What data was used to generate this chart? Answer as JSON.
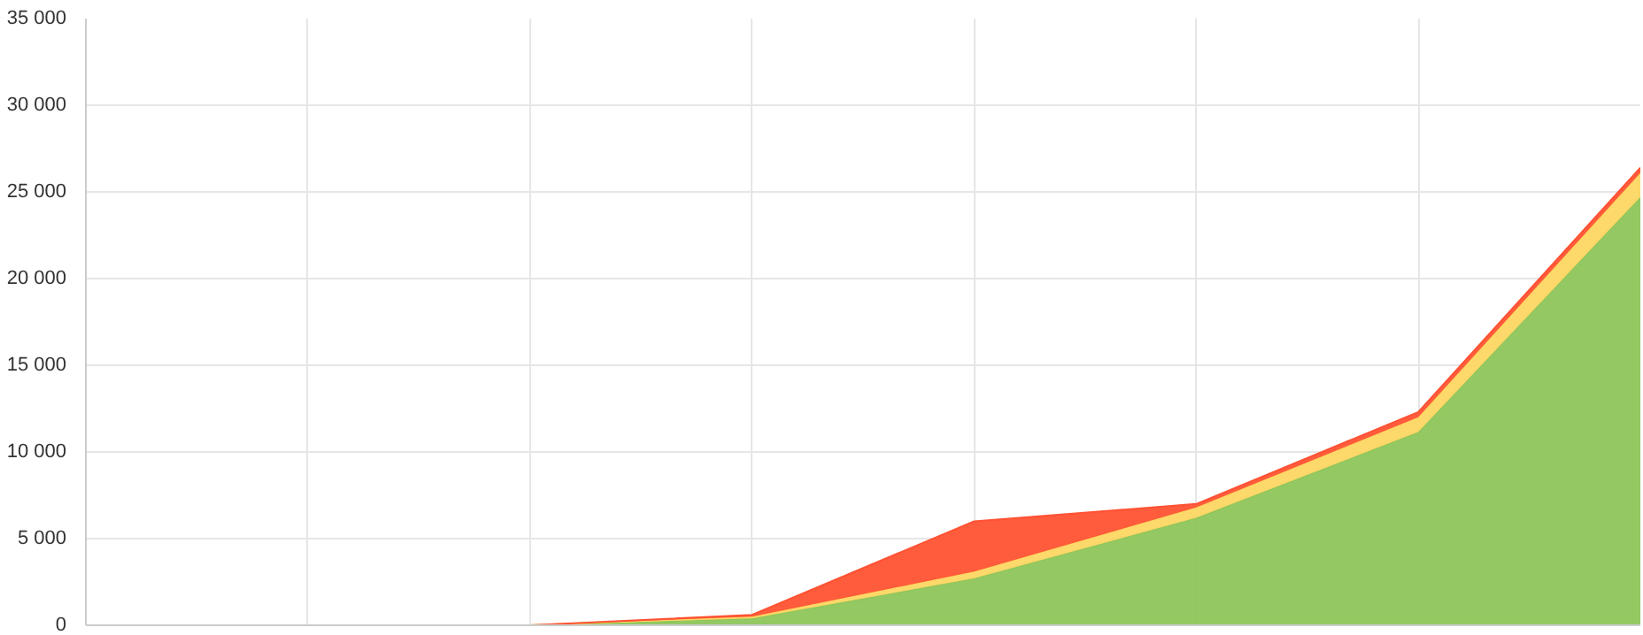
{
  "chart_data": {
    "type": "area",
    "stacked": true,
    "categories": [
      null,
      null,
      null,
      null,
      null,
      null,
      null,
      null
    ],
    "series": [
      {
        "color": "#8dc55b",
        "values": [
          0,
          0,
          0,
          400,
          2700,
          6200,
          11150,
          24700
        ]
      },
      {
        "color": "#fdd663",
        "values": [
          0,
          0,
          0,
          100,
          400,
          600,
          850,
          1400
        ]
      },
      {
        "color": "#ff5233",
        "values": [
          0,
          0,
          0,
          100,
          2900,
          200,
          300,
          300
        ]
      }
    ],
    "ylim": [
      0,
      35000
    ],
    "yticks": [
      0,
      {
        "value": 5000,
        "label": "5 000"
      },
      {
        "value": 10000,
        "label": "10 000"
      },
      {
        "value": 15000,
        "label": "15 000"
      },
      {
        "value": 20000,
        "label": "20 000"
      },
      {
        "value": 25000,
        "label": "25 000"
      },
      {
        "value": 30000,
        "label": "30 000"
      },
      {
        "value": 35000,
        "label": "35 000"
      }
    ],
    "grid": true,
    "tick_labels": "y"
  }
}
